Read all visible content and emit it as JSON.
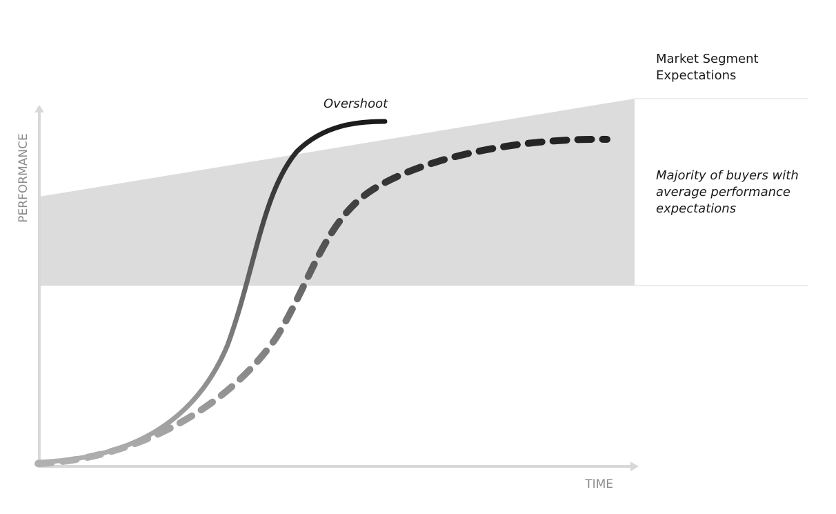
{
  "labels": {
    "market_segment": [
      "Market Segment",
      "Expectations"
    ],
    "overshoot": "Overshoot",
    "majority": [
      "Majority of buyers with",
      "average performance",
      "expectations"
    ]
  },
  "axes": {
    "y": "PERFORMANCE",
    "x": "TIME"
  }
}
